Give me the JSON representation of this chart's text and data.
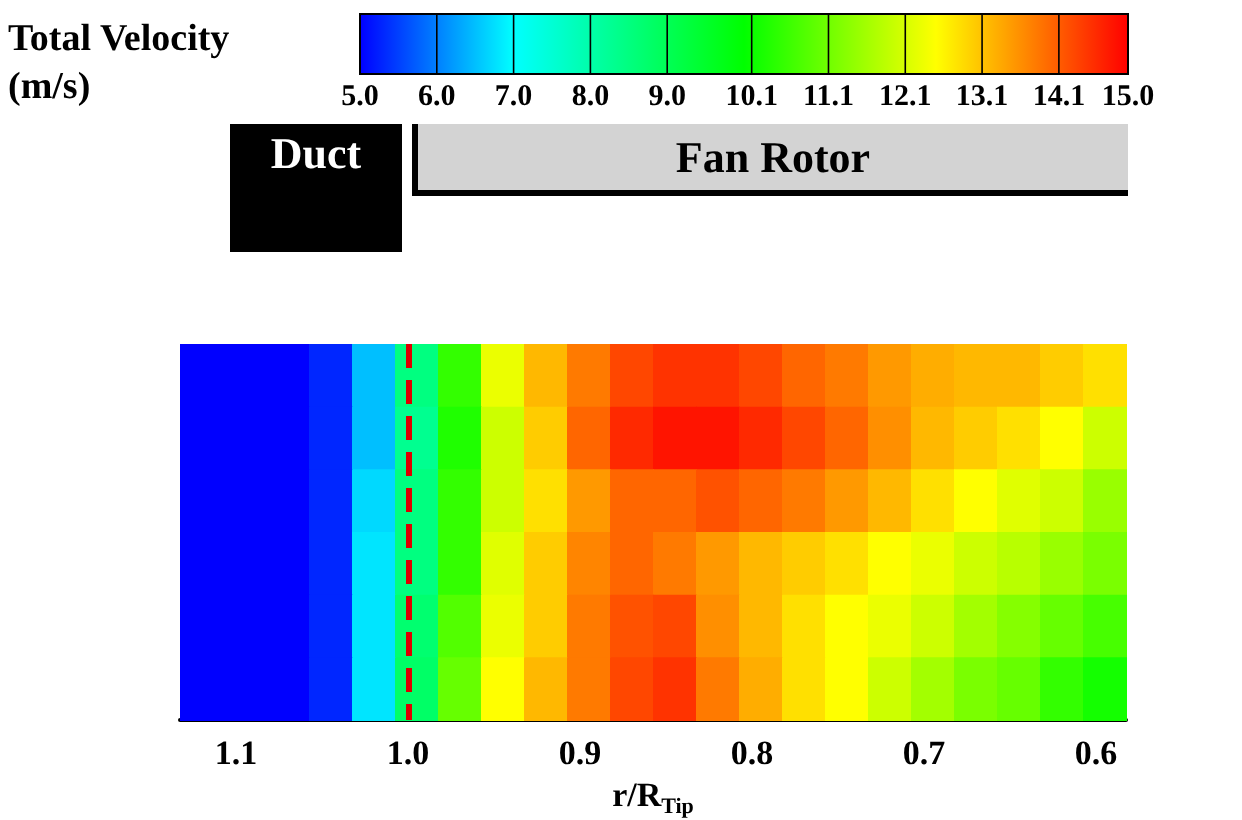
{
  "chart_data": {
    "type": "heatmap",
    "clabel": "Total Velocity (m/s)",
    "xlabel": "r/R$_{Tip}$",
    "annotations": [
      "Duct",
      "Fan Rotor"
    ],
    "x": [
      1.12,
      1.095,
      1.07,
      1.045,
      1.02,
      0.995,
      0.97,
      0.945,
      0.92,
      0.895,
      0.87,
      0.845,
      0.82,
      0.795,
      0.77,
      0.745,
      0.72,
      0.695,
      0.67,
      0.645,
      0.62,
      0.595
    ],
    "y_categories": [
      null,
      null,
      null,
      null,
      null,
      null
    ],
    "cells": [
      [
        5,
        5,
        5,
        5.3,
        6.5,
        8.5,
        10.5,
        12.3,
        13.2,
        13.8,
        14.3,
        14.5,
        14.5,
        14.3,
        14,
        13.8,
        13.5,
        13.3,
        13.2,
        13.2,
        13,
        12.8
      ],
      [
        5,
        5,
        5,
        5.3,
        6.5,
        8.3,
        10.3,
        12,
        13,
        14,
        14.6,
        14.8,
        14.8,
        14.6,
        14.3,
        14,
        13.6,
        13.2,
        13,
        12.8,
        12.5,
        12
      ],
      [
        5,
        5,
        5,
        5.3,
        6.7,
        8.5,
        10.5,
        12,
        12.8,
        13.5,
        14,
        14,
        14.2,
        14,
        13.8,
        13.5,
        13.2,
        12.8,
        12.5,
        12.2,
        12,
        11.5
      ],
      [
        5,
        5,
        5,
        5.3,
        6.8,
        8.5,
        10.5,
        12.2,
        13,
        13.7,
        14,
        13.8,
        13.5,
        13.2,
        13,
        12.8,
        12.5,
        12.3,
        12,
        11.8,
        11.5,
        11.2
      ],
      [
        5,
        5,
        5,
        5.3,
        6.8,
        8.7,
        10.8,
        12.3,
        13,
        13.8,
        14.2,
        14.3,
        13.6,
        13.2,
        12.8,
        12.5,
        12.3,
        12,
        11.6,
        11.3,
        11,
        10.7
      ],
      [
        5,
        5,
        5,
        5.3,
        6.8,
        8.8,
        11,
        12.5,
        13.2,
        13.8,
        14.3,
        14.5,
        13.8,
        13.3,
        12.8,
        12.5,
        12,
        11.6,
        11.2,
        11,
        10.5,
        10.2
      ]
    ],
    "xlim": [
      1.1325,
      0.5825
    ],
    "xticks": [
      1.1,
      {
        "value": 1.0,
        "label": "1.0"
      },
      0.9,
      0.8,
      0.7,
      0.6
    ],
    "clim": [
      5,
      15
    ],
    "cticks": [
      {
        "value": 5,
        "label": "5.0"
      },
      {
        "value": 6,
        "label": "6.0"
      },
      {
        "value": 7,
        "label": "7.0"
      },
      {
        "value": 8,
        "label": "8.0"
      },
      {
        "value": 9,
        "label": "9.0"
      },
      10.1,
      11.1,
      12.1,
      13.1,
      14.1,
      {
        "value": 15,
        "label": "15.0"
      }
    ],
    "ref_lines": [
      {
        "axis": "x",
        "value": 1.0,
        "label": null,
        "color": "#dd0000",
        "line_style": "dashed"
      }
    ]
  }
}
